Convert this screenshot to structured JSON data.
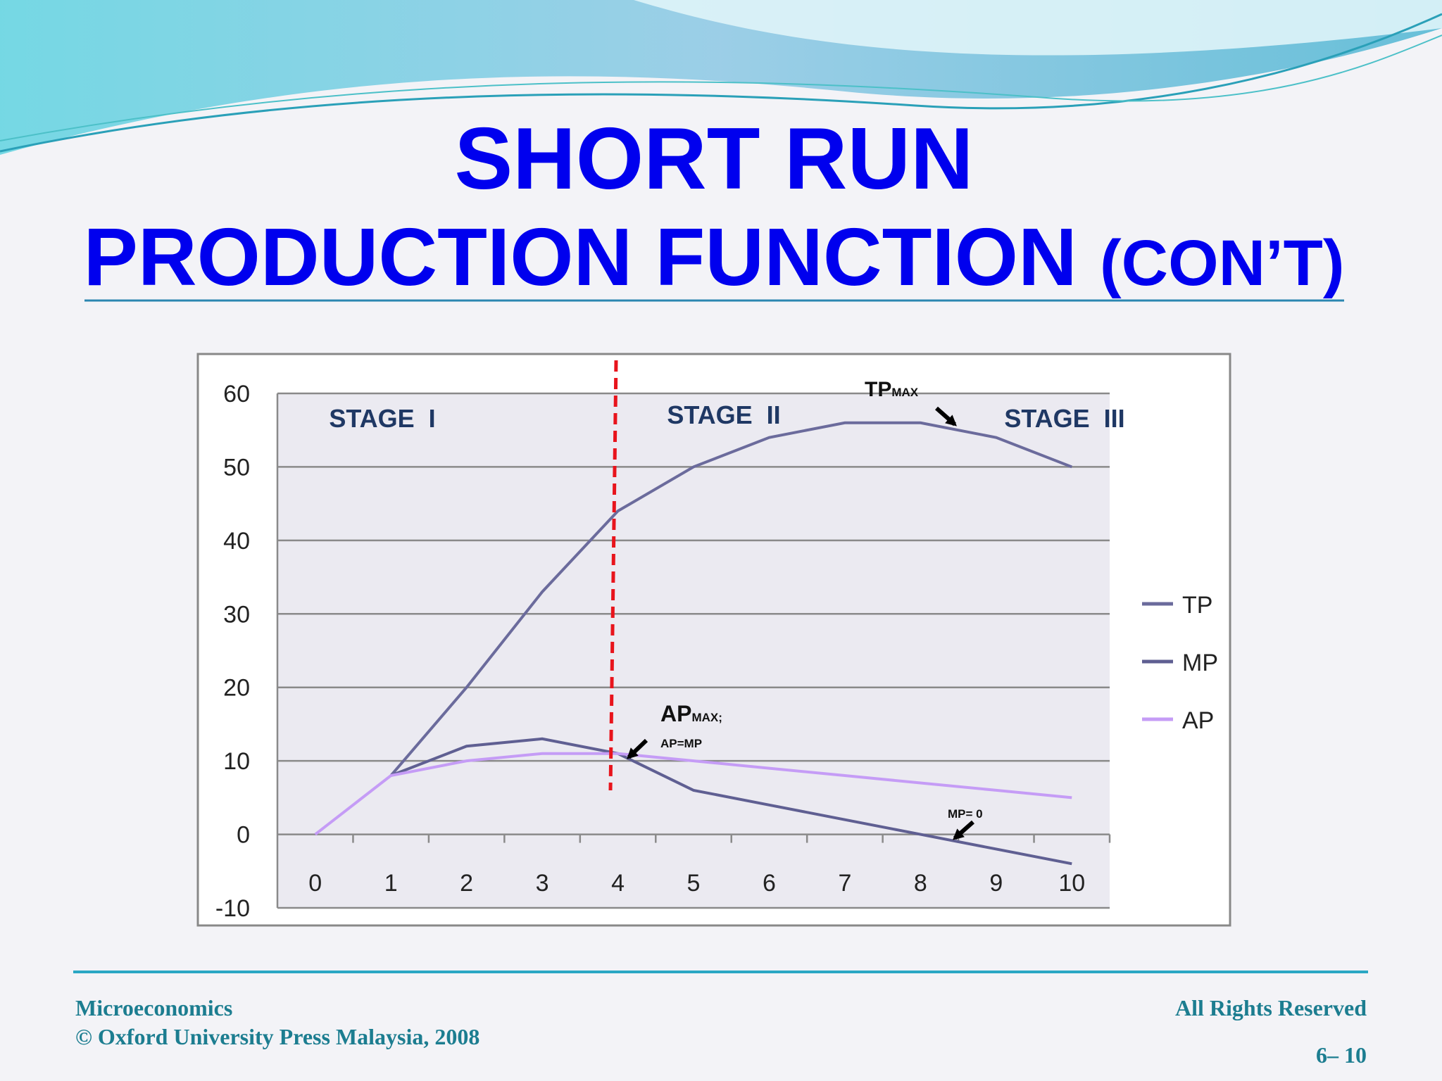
{
  "slide": {
    "title_line1": "SHORT RUN",
    "title_line2": "PRODUCTION FUNCTION",
    "title_suffix": "(CON’T)",
    "footer_left": [
      "Microeconomics",
      "© Oxford University Press Malaysia, 2008"
    ],
    "footer_right": [
      "All Rights Reserved",
      "6– 10"
    ]
  },
  "chart_data": {
    "type": "line",
    "categories": [
      "0",
      "1",
      "2",
      "3",
      "4",
      "5",
      "6",
      "7",
      "8",
      "9",
      "10"
    ],
    "series": [
      {
        "name": "TP",
        "color": "#6b6b9c",
        "values": [
          null,
          8,
          20,
          33,
          44,
          50,
          54,
          56,
          56,
          54,
          50
        ]
      },
      {
        "name": "MP",
        "color": "#5f5f92",
        "values": [
          null,
          8,
          12,
          13,
          11,
          6,
          4,
          2,
          0,
          -2,
          -4
        ]
      },
      {
        "name": "AP",
        "color": "#c59cf6",
        "values": [
          0,
          8,
          10,
          11,
          11,
          10,
          9,
          8,
          7,
          6,
          5
        ]
      }
    ],
    "ylim": [
      -10,
      60
    ],
    "yticks": [
      -10,
      0,
      10,
      20,
      30,
      40,
      50,
      60
    ],
    "grid": true,
    "legend": "right",
    "stages": [
      "STAGE  I",
      "STAGE  II",
      "STAGE  III"
    ],
    "annotations": [
      {
        "text": "TP",
        "subscript": "MAX"
      },
      {
        "text": "AP",
        "subscript": "MAX;"
      },
      {
        "text": "AP=MP"
      },
      {
        "text": "MP= 0"
      }
    ]
  }
}
